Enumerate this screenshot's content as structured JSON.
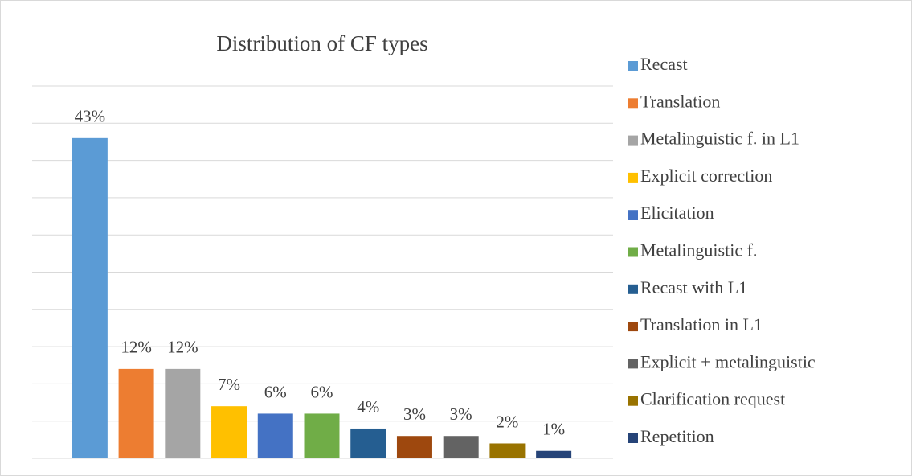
{
  "chart_data": {
    "type": "bar",
    "title": "Distribution of CF types",
    "categories": [
      "Recast",
      "Translation",
      "Metalinguistic f. in L1",
      "Explicit correction",
      "Elicitation",
      "Metalinguistic f.",
      "Recast with L1",
      "Translation in L1",
      "Explicit + metalinguistic",
      "Clarification request",
      "Repetition"
    ],
    "colors": [
      "#5b9bd5",
      "#ed7d31",
      "#a5a5a5",
      "#ffc000",
      "#4472c4",
      "#70ad47",
      "#255e91",
      "#9e480e",
      "#636363",
      "#997300",
      "#264478"
    ],
    "values": [
      43,
      12,
      12,
      7,
      6,
      6,
      4,
      3,
      3,
      2,
      1
    ],
    "value_labels": [
      "43%",
      "12%",
      "12%",
      "7%",
      "6%",
      "6%",
      "4%",
      "3%",
      "3%",
      "2%",
      "1%"
    ],
    "ylim": [
      0,
      50
    ],
    "yticks": [
      0,
      5,
      10,
      15,
      20,
      25,
      30,
      35,
      40,
      45,
      50
    ],
    "grid": true,
    "legend": "right"
  }
}
